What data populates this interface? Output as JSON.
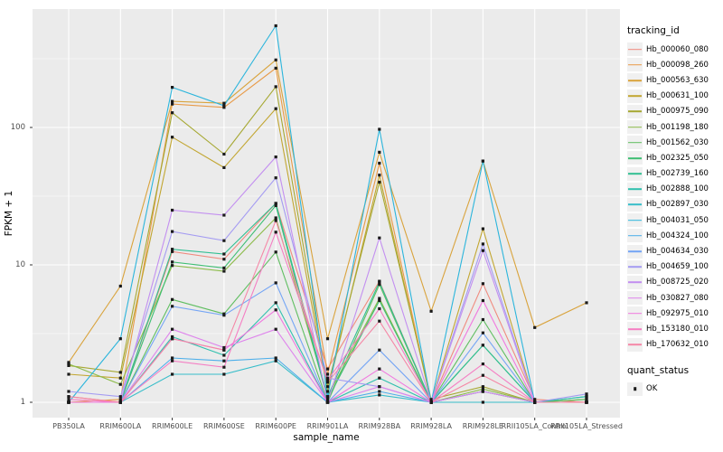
{
  "figure": {
    "y_axis": {
      "title": "FPKM + 1"
    },
    "x_axis": {
      "title": "sample_name"
    },
    "legend_tracking": {
      "title": "tracking_id"
    },
    "legend_quant": {
      "title": "quant_status",
      "ok_label": "OK"
    }
  },
  "colors": {
    "panel_bg": "#EBEBEB",
    "grid": "#FFFFFF",
    "legend_key_bg": "#F0F0F0",
    "tick_text": "#4D4D4D",
    "point": "#1A1A1A"
  },
  "chart_data": {
    "type": "line",
    "title": "",
    "xlabel": "sample_name",
    "ylabel": "FPKM + 1",
    "y_scale": "log10",
    "ylim": [
      1,
      600
    ],
    "y_ticks": [
      {
        "value": 1,
        "label": "1"
      },
      {
        "value": 10,
        "label": "10"
      },
      {
        "value": 100,
        "label": "100"
      }
    ],
    "y_minor_ticks": [
      3.1623,
      31.623,
      316.23
    ],
    "grid": true,
    "legend_position": "right",
    "point_marker": {
      "shape": "square",
      "label": "OK"
    },
    "categories": [
      "PB350LA",
      "RRIM600LA",
      "RRIM600LE",
      "RRIM600SE",
      "RRIM600PE",
      "RRIM901LA",
      "RRIM928BA",
      "RRIM928LA",
      "RRIM928LE",
      "RRII105LA_Control",
      "RRII105LA_Stressed"
    ],
    "series": [
      {
        "name": "Hb_000060_080",
        "color": "#F08A7E",
        "values": [
          1.1,
          1.0,
          12.5,
          11.0,
          28.0,
          1.75,
          7.6,
          1.0,
          7.3,
          1.05,
          1.0
        ]
      },
      {
        "name": "Hb_000098_260",
        "color": "#E89A47",
        "values": [
          1.0,
          1.05,
          148.0,
          140.0,
          270.0,
          1.6,
          55.0,
          1.0,
          1.2,
          1.0,
          1.0
        ]
      },
      {
        "name": "Hb_000563_630",
        "color": "#D9A33C",
        "values": [
          1.95,
          7.0,
          155.0,
          150.0,
          310.0,
          2.9,
          66.0,
          4.6,
          57.0,
          3.5,
          5.3
        ]
      },
      {
        "name": "Hb_000631_100",
        "color": "#C2A631",
        "values": [
          1.6,
          1.5,
          85.0,
          51.0,
          137.0,
          1.2,
          45.0,
          1.0,
          18.3,
          1.0,
          1.0
        ]
      },
      {
        "name": "Hb_000975_090",
        "color": "#A6A832",
        "values": [
          1.85,
          1.65,
          128.0,
          64.0,
          198.0,
          1.3,
          40.0,
          1.05,
          1.3,
          1.0,
          1.0
        ]
      },
      {
        "name": "Hb_001198_180",
        "color": "#8CBB4A",
        "values": [
          1.9,
          1.35,
          9.9,
          9.0,
          22.0,
          1.1,
          5.7,
          1.0,
          1.25,
          1.0,
          1.05
        ]
      },
      {
        "name": "Hb_001562_030",
        "color": "#5FBE60",
        "values": [
          1.0,
          1.0,
          5.6,
          4.4,
          12.4,
          1.0,
          7.2,
          1.0,
          4.0,
          1.0,
          1.05
        ]
      },
      {
        "name": "Hb_002325_050",
        "color": "#3DBE72",
        "values": [
          1.0,
          1.0,
          10.5,
          9.5,
          27.0,
          1.05,
          5.5,
          1.0,
          2.6,
          1.0,
          1.0
        ]
      },
      {
        "name": "Hb_002739_160",
        "color": "#31BF92",
        "values": [
          1.0,
          1.0,
          13.0,
          12.0,
          28.0,
          1.1,
          7.5,
          1.0,
          2.6,
          1.0,
          1.1
        ]
      },
      {
        "name": "Hb_002888_100",
        "color": "#30C0AE",
        "values": [
          1.0,
          1.0,
          3.0,
          2.2,
          5.3,
          1.0,
          1.5,
          1.0,
          1.2,
          1.0,
          1.1
        ]
      },
      {
        "name": "Hb_002897_030",
        "color": "#37BDC9",
        "values": [
          1.0,
          1.0,
          1.6,
          1.6,
          2.0,
          1.0,
          1.13,
          1.0,
          1.0,
          1.0,
          1.0
        ]
      },
      {
        "name": "Hb_004031_050",
        "color": "#2BB5DC",
        "values": [
          1.0,
          2.9,
          196.0,
          144.0,
          550.0,
          1.1,
          97.0,
          1.0,
          57.0,
          1.0,
          1.0
        ]
      },
      {
        "name": "Hb_004324_100",
        "color": "#4BAEEA",
        "values": [
          1.0,
          1.0,
          2.1,
          2.0,
          2.1,
          1.0,
          1.2,
          1.0,
          1.2,
          1.0,
          1.0
        ]
      },
      {
        "name": "Hb_004634_030",
        "color": "#74A5F5",
        "values": [
          1.0,
          1.0,
          5.0,
          4.3,
          7.4,
          1.0,
          2.4,
          1.0,
          3.2,
          1.0,
          1.0
        ]
      },
      {
        "name": "Hb_004659_100",
        "color": "#A49BF2",
        "values": [
          1.2,
          1.1,
          17.5,
          15.0,
          43.0,
          1.5,
          1.3,
          1.0,
          14.2,
          1.0,
          1.15
        ]
      },
      {
        "name": "Hb_008725_020",
        "color": "#C38FF0",
        "values": [
          1.0,
          1.0,
          25.0,
          23.0,
          61.0,
          1.0,
          15.7,
          1.0,
          12.7,
          1.0,
          1.0
        ]
      },
      {
        "name": "Hb_030827_080",
        "color": "#DE84EC",
        "values": [
          1.0,
          1.0,
          3.4,
          2.5,
          3.4,
          1.0,
          1.3,
          1.0,
          1.2,
          1.0,
          1.0
        ]
      },
      {
        "name": "Hb_092975_010",
        "color": "#F078DF",
        "values": [
          1.0,
          1.0,
          2.9,
          2.4,
          4.7,
          1.0,
          1.75,
          1.0,
          5.5,
          1.0,
          1.0
        ]
      },
      {
        "name": "Hb_153180_010",
        "color": "#F57EC3",
        "values": [
          1.05,
          1.0,
          2.0,
          1.8,
          17.3,
          1.45,
          4.8,
          1.0,
          1.9,
          1.0,
          1.0
        ]
      },
      {
        "name": "Hb_170632_010",
        "color": "#F587A6",
        "values": [
          1.1,
          1.0,
          2.9,
          2.4,
          21.0,
          1.4,
          3.9,
          1.0,
          1.57,
          1.0,
          1.0
        ]
      }
    ]
  }
}
